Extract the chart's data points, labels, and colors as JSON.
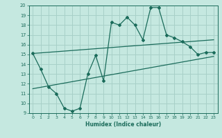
{
  "title": "",
  "xlabel": "Humidex (Indice chaleur)",
  "bg_color": "#c5e8e0",
  "grid_color": "#a8d0c8",
  "line_color": "#1a6b5a",
  "xlim": [
    -0.5,
    23.5
  ],
  "ylim": [
    9,
    20
  ],
  "xticks": [
    0,
    1,
    2,
    3,
    4,
    5,
    6,
    7,
    8,
    9,
    10,
    11,
    12,
    13,
    14,
    15,
    16,
    17,
    18,
    19,
    20,
    21,
    22,
    23
  ],
  "yticks": [
    9,
    10,
    11,
    12,
    13,
    14,
    15,
    16,
    17,
    18,
    19,
    20
  ],
  "zigzag_x": [
    0,
    1,
    2,
    3,
    4,
    5,
    6,
    7,
    8,
    9,
    10,
    11,
    12,
    13,
    14,
    15,
    16,
    17,
    18,
    19,
    20,
    21,
    22,
    23
  ],
  "zigzag_y": [
    15.1,
    13.5,
    11.7,
    11.0,
    9.5,
    9.2,
    9.5,
    13.0,
    14.9,
    12.3,
    18.3,
    18.0,
    18.8,
    18.0,
    16.5,
    19.8,
    19.8,
    17.0,
    16.7,
    16.3,
    15.8,
    15.0,
    15.2,
    15.2
  ],
  "upper_line_x": [
    0,
    23
  ],
  "upper_line_y": [
    15.1,
    16.5
  ],
  "lower_line_x": [
    0,
    23
  ],
  "lower_line_y": [
    11.5,
    14.8
  ]
}
